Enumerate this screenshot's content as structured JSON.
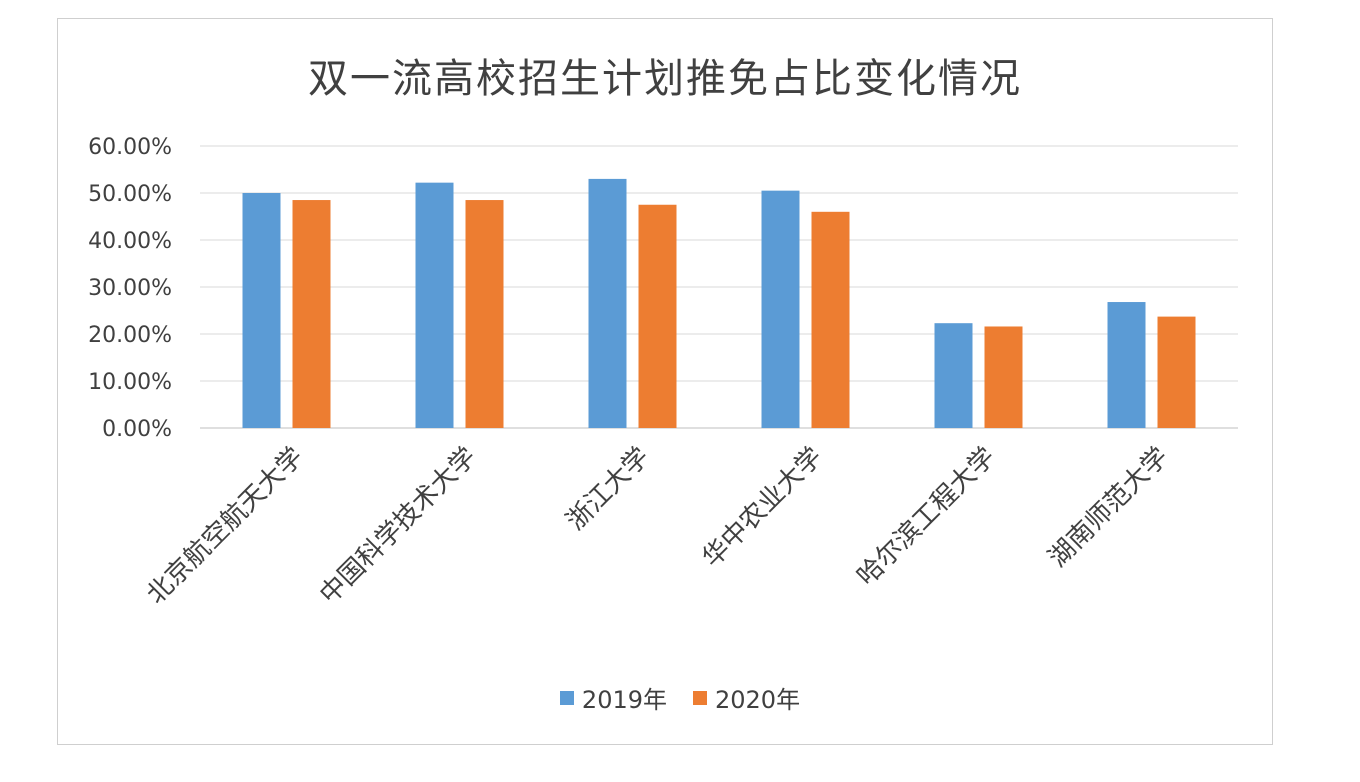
{
  "chart_data": {
    "type": "bar",
    "title": "双一流高校招生计划推免占比变化情况",
    "categories": [
      "北京航空航天大学",
      "中国科学技术大学",
      "浙江大学",
      "华中农业大学",
      "哈尔滨工程大学",
      "湖南师范大学"
    ],
    "series": [
      {
        "name": "2019年",
        "values": [
          50.0,
          52.2,
          53.0,
          50.5,
          22.3,
          26.8
        ],
        "color": "#5b9bd5"
      },
      {
        "name": "2020年",
        "values": [
          48.5,
          48.5,
          47.5,
          46.0,
          21.6,
          23.7
        ],
        "color": "#ed7d31"
      }
    ],
    "yticks": [
      "0.00%",
      "10.00%",
      "20.00%",
      "30.00%",
      "40.00%",
      "50.00%",
      "60.00%"
    ],
    "ylim": [
      0,
      60
    ],
    "unit": "%",
    "grid": true,
    "legend_position": "bottom"
  }
}
